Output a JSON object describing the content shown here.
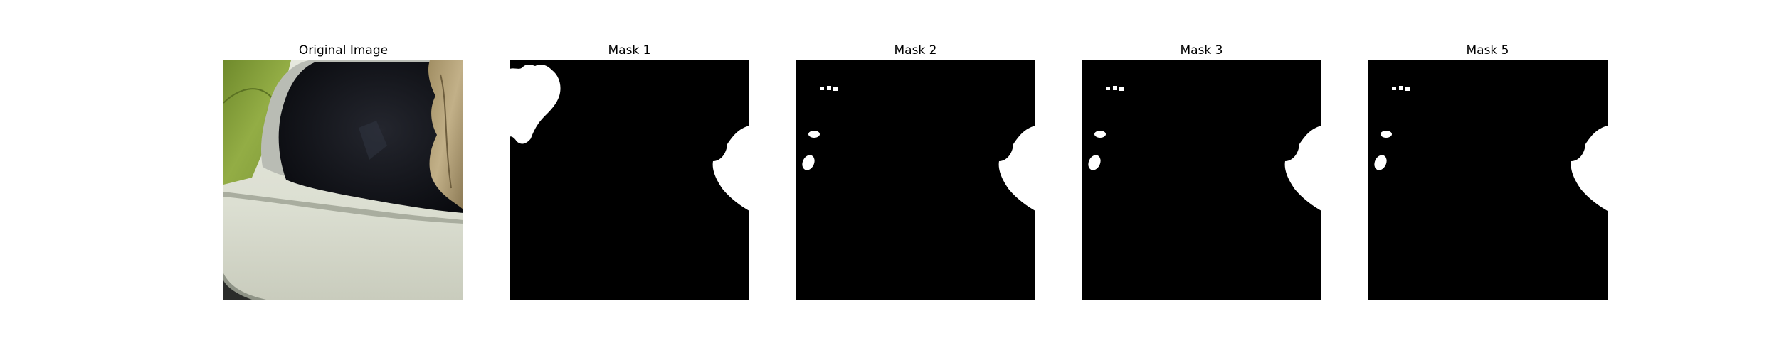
{
  "figure": {
    "panels": [
      {
        "title": "Original Image",
        "kind": "photo"
      },
      {
        "title": "Mask 1",
        "kind": "mask"
      },
      {
        "title": "Mask 2",
        "kind": "mask"
      },
      {
        "title": "Mask 3",
        "kind": "mask"
      },
      {
        "title": "Mask 5",
        "kind": "mask"
      }
    ]
  },
  "colors": {
    "background": "#ffffff",
    "mask_background": "#000000",
    "mask_foreground": "#ffffff",
    "leaf_green": "#8aa33e",
    "car_body": "#dfe2d6",
    "mirror_dark": "#0e0f14",
    "dry_leaf": "#b8a47a"
  }
}
